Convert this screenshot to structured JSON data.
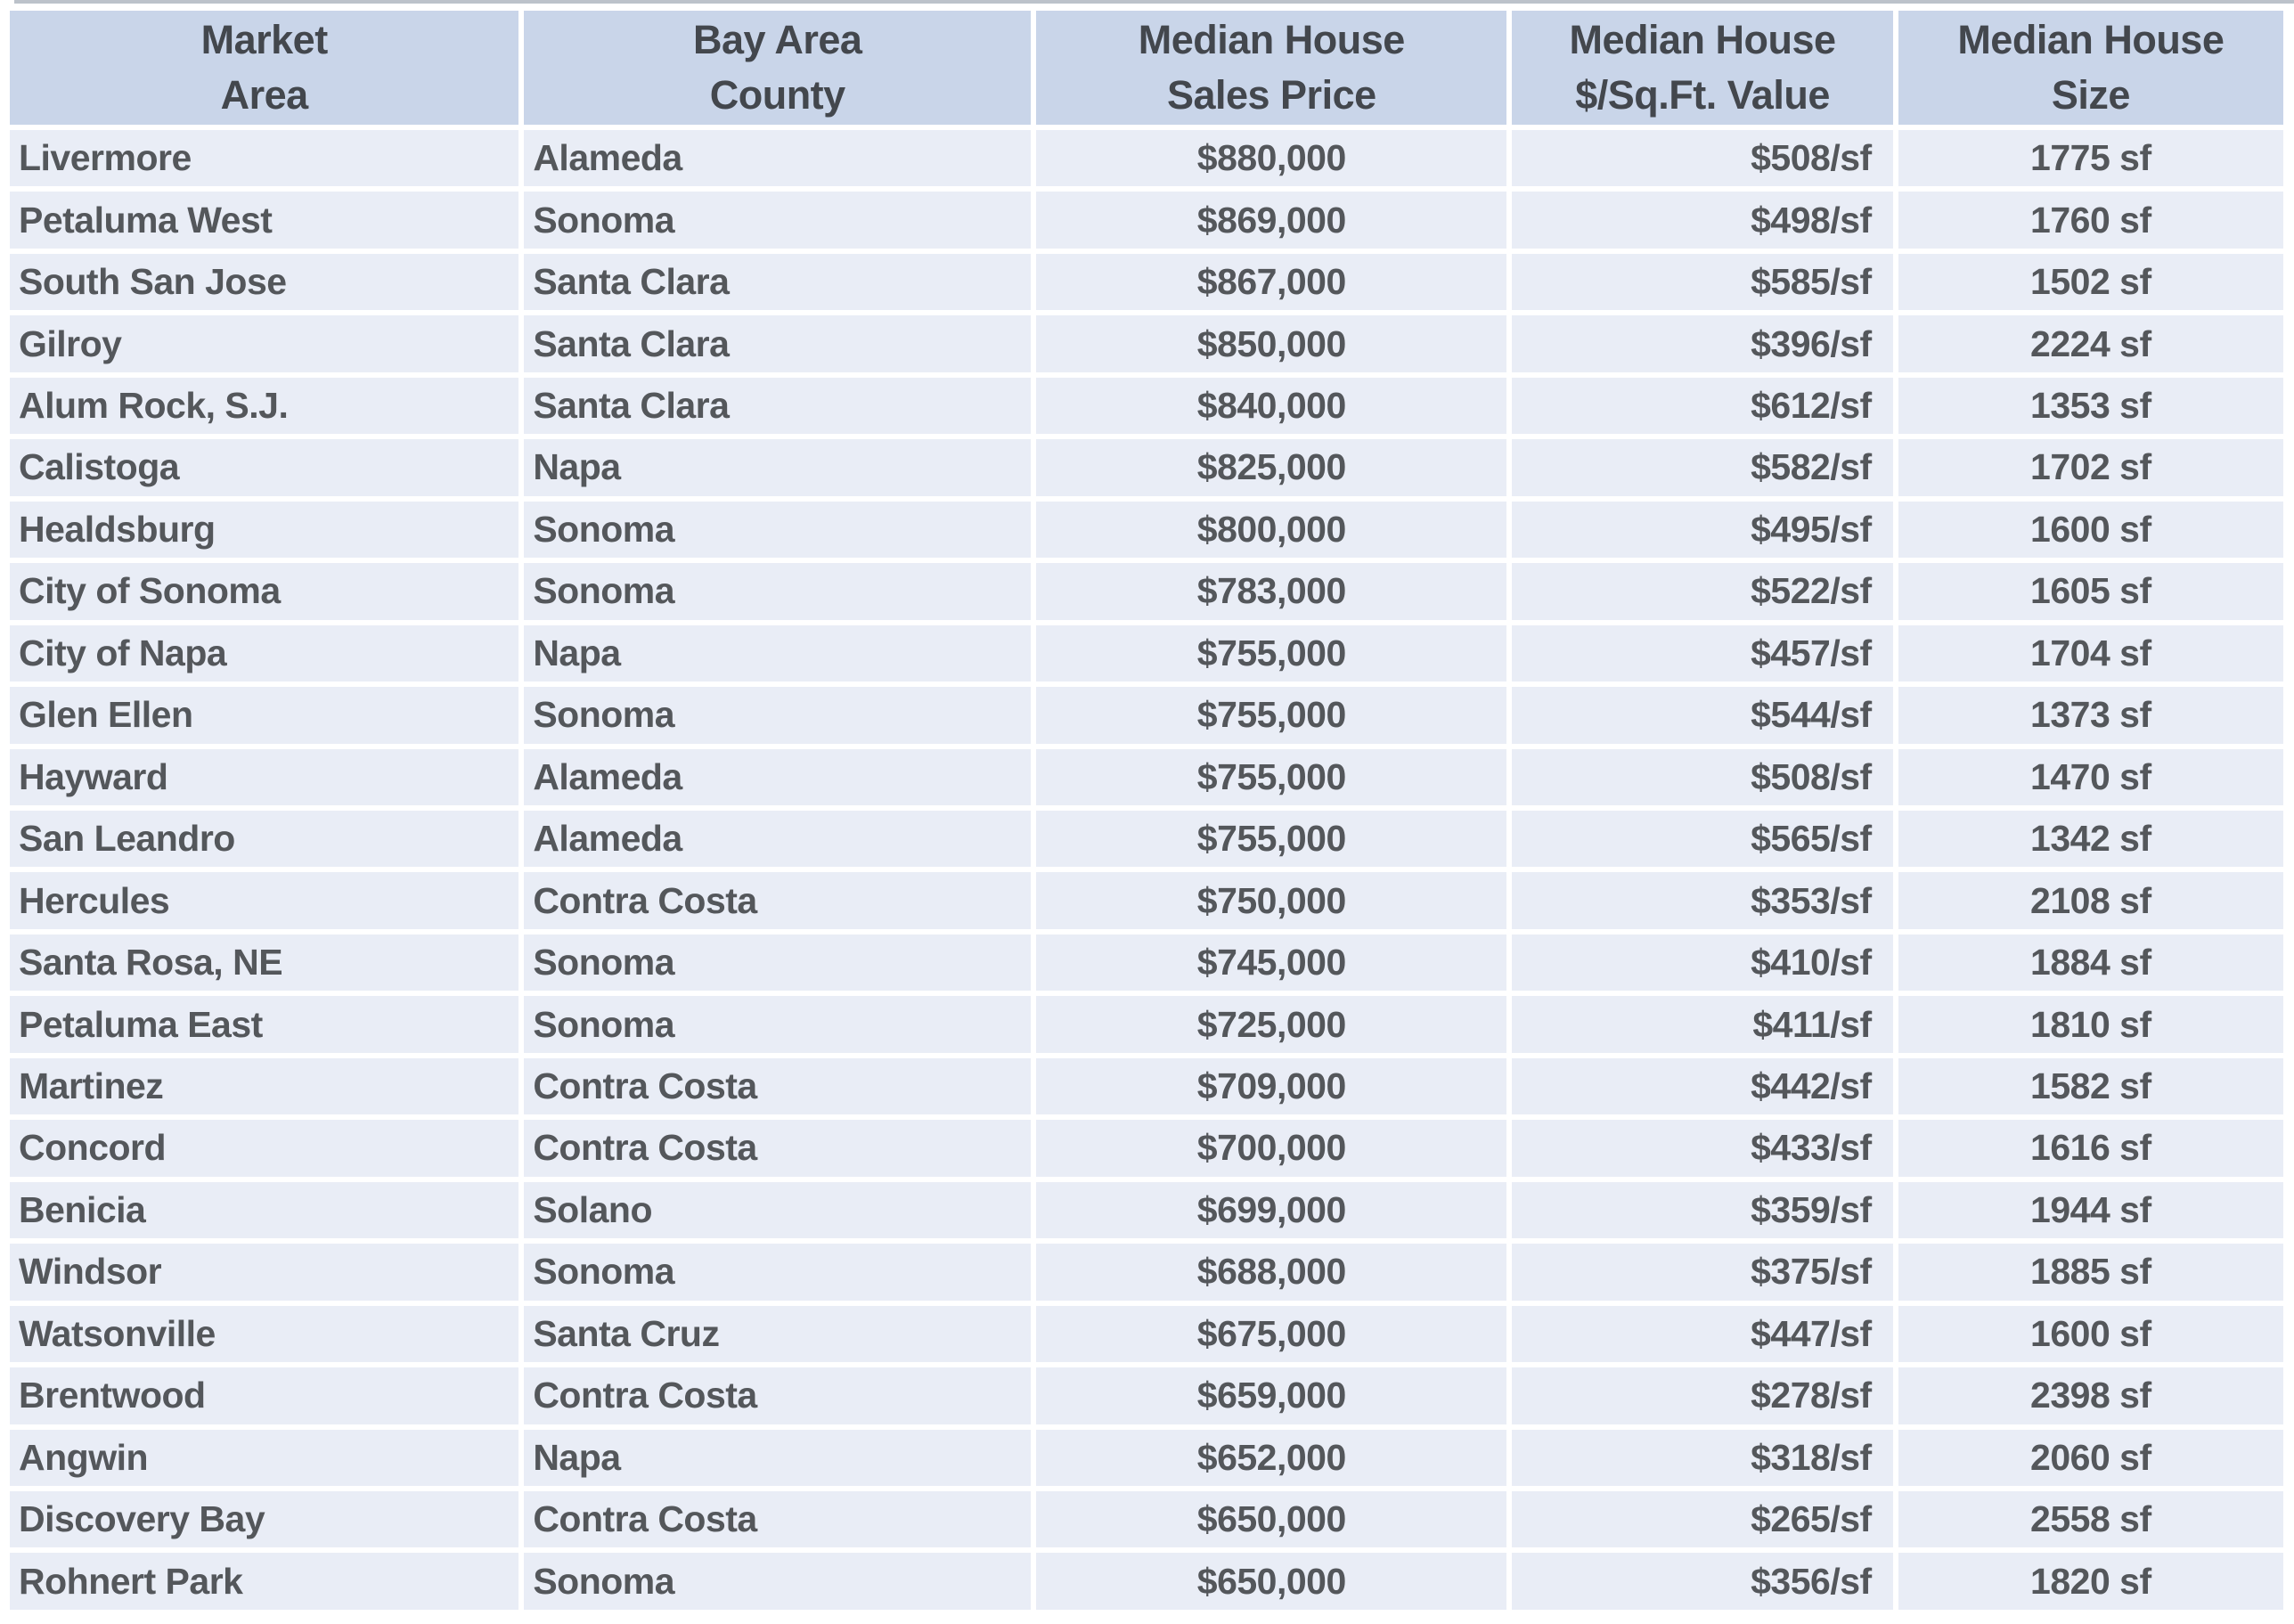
{
  "chart_data": {
    "type": "table",
    "columns": [
      {
        "key": "area",
        "line1": "Market",
        "line2": "Area",
        "data_align": "left"
      },
      {
        "key": "county",
        "line1": "Bay Area",
        "line2": "County",
        "data_align": "left"
      },
      {
        "key": "price",
        "line1": "Median House",
        "line2": "Sales Price",
        "data_align": "center"
      },
      {
        "key": "ppsf",
        "line1": "Median House",
        "line2": "$/Sq.Ft. Value",
        "data_align": "right"
      },
      {
        "key": "size",
        "line1": "Median House",
        "line2": "Size",
        "data_align": "center"
      }
    ],
    "rows": [
      {
        "area": "Livermore",
        "county": "Alameda",
        "price": "$880,000",
        "ppsf": "$508/sf",
        "size": "1775 sf"
      },
      {
        "area": "Petaluma West",
        "county": "Sonoma",
        "price": "$869,000",
        "ppsf": "$498/sf",
        "size": "1760 sf"
      },
      {
        "area": "South San Jose",
        "county": "Santa Clara",
        "price": "$867,000",
        "ppsf": "$585/sf",
        "size": "1502 sf"
      },
      {
        "area": "Gilroy",
        "county": "Santa Clara",
        "price": "$850,000",
        "ppsf": "$396/sf",
        "size": "2224 sf"
      },
      {
        "area": "Alum Rock, S.J.",
        "county": "Santa Clara",
        "price": "$840,000",
        "ppsf": "$612/sf",
        "size": "1353 sf"
      },
      {
        "area": "Calistoga",
        "county": "Napa",
        "price": "$825,000",
        "ppsf": "$582/sf",
        "size": "1702 sf"
      },
      {
        "area": "Healdsburg",
        "county": "Sonoma",
        "price": "$800,000",
        "ppsf": "$495/sf",
        "size": "1600 sf"
      },
      {
        "area": "City of Sonoma",
        "county": "Sonoma",
        "price": "$783,000",
        "ppsf": "$522/sf",
        "size": "1605 sf"
      },
      {
        "area": "City of Napa",
        "county": "Napa",
        "price": "$755,000",
        "ppsf": "$457/sf",
        "size": "1704 sf"
      },
      {
        "area": "Glen Ellen",
        "county": "Sonoma",
        "price": "$755,000",
        "ppsf": "$544/sf",
        "size": "1373 sf"
      },
      {
        "area": "Hayward",
        "county": "Alameda",
        "price": "$755,000",
        "ppsf": "$508/sf",
        "size": "1470 sf"
      },
      {
        "area": "San Leandro",
        "county": "Alameda",
        "price": "$755,000",
        "ppsf": "$565/sf",
        "size": "1342 sf"
      },
      {
        "area": "Hercules",
        "county": "Contra Costa",
        "price": "$750,000",
        "ppsf": "$353/sf",
        "size": "2108 sf"
      },
      {
        "area": "Santa Rosa, NE",
        "county": "Sonoma",
        "price": "$745,000",
        "ppsf": "$410/sf",
        "size": "1884 sf"
      },
      {
        "area": "Petaluma East",
        "county": "Sonoma",
        "price": "$725,000",
        "ppsf": "$411/sf",
        "size": "1810 sf"
      },
      {
        "area": "Martinez",
        "county": "Contra Costa",
        "price": "$709,000",
        "ppsf": "$442/sf",
        "size": "1582 sf"
      },
      {
        "area": "Concord",
        "county": "Contra Costa",
        "price": "$700,000",
        "ppsf": "$433/sf",
        "size": "1616 sf"
      },
      {
        "area": "Benicia",
        "county": "Solano",
        "price": "$699,000",
        "ppsf": "$359/sf",
        "size": "1944 sf"
      },
      {
        "area": "Windsor",
        "county": "Sonoma",
        "price": "$688,000",
        "ppsf": "$375/sf",
        "size": "1885 sf"
      },
      {
        "area": "Watsonville",
        "county": "Santa Cruz",
        "price": "$675,000",
        "ppsf": "$447/sf",
        "size": "1600 sf"
      },
      {
        "area": "Brentwood",
        "county": "Contra Costa",
        "price": "$659,000",
        "ppsf": "$278/sf",
        "size": "2398 sf"
      },
      {
        "area": "Angwin",
        "county": "Napa",
        "price": "$652,000",
        "ppsf": "$318/sf",
        "size": "2060 sf"
      },
      {
        "area": "Discovery Bay",
        "county": "Contra Costa",
        "price": "$650,000",
        "ppsf": "$265/sf",
        "size": "2558 sf"
      },
      {
        "area": "Rohnert Park",
        "county": "Sonoma",
        "price": "$650,000",
        "ppsf": "$356/sf",
        "size": "1820 sf"
      }
    ]
  },
  "colors": {
    "header_bg": "#c9d5e9",
    "row_bg": "#e9edf6",
    "separator": "#ffffff",
    "header_text": "#43474d",
    "text": "#54575b",
    "top_line": "#bcc2ca"
  }
}
